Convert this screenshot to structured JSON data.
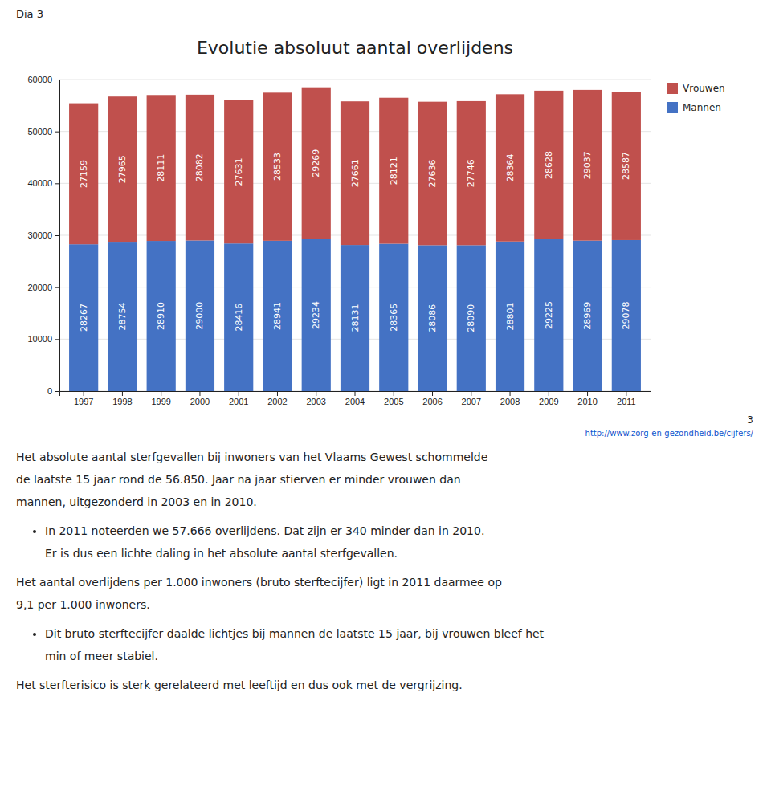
{
  "slide_label": "Dia 3",
  "chart_data": {
    "type": "bar",
    "title": "Evolutie absoluut aantal overlijdens",
    "categories": [
      1997,
      1998,
      1999,
      2000,
      2001,
      2002,
      2003,
      2004,
      2005,
      2006,
      2007,
      2008,
      2009,
      2010,
      2011
    ],
    "series": [
      {
        "name": "Mannen",
        "color": "#4472C4",
        "values": [
          28267,
          28754,
          28910,
          29000,
          28416,
          28941,
          29234,
          28131,
          28365,
          28086,
          28090,
          28801,
          29225,
          28969,
          29078
        ]
      },
      {
        "name": "Vrouwen",
        "color": "#C0504D",
        "values": [
          27159,
          27965,
          28111,
          28082,
          27631,
          28533,
          29269,
          27661,
          28121,
          27636,
          27746,
          28364,
          28628,
          29037,
          28587
        ]
      }
    ],
    "stacked": true,
    "data_labels": true,
    "ylim": [
      0,
      60000
    ],
    "yticks": [
      0,
      10000,
      20000,
      30000,
      40000,
      50000,
      60000
    ],
    "grid": true,
    "legend": "right"
  },
  "footer_number": "3",
  "footer_url": "http://www.zorg-en-gezondheid.be/cijfers/",
  "body": [
    {
      "lines": [
        "Het absolute aantal sterfgevallen bij inwoners van het Vlaams Gewest schommelde",
        "de laatste 15 jaar rond de 56.850. Jaar na jaar stierven er minder vrouwen dan",
        "mannen, uitgezonderd in 2003 en in 2010."
      ]
    },
    {
      "bullet": true,
      "lines": [
        "In 2011 noteerden we 57.666 overlijdens. Dat zijn er 340 minder dan in 2010.",
        "Er is dus een lichte daling in het absolute aantal sterfgevallen."
      ]
    },
    {
      "lines": [
        "Het aantal overlijdens per 1.000 inwoners (bruto sterftecijfer) ligt in 2011 daarmee op",
        "9,1 per 1.000 inwoners."
      ]
    },
    {
      "bullet": true,
      "lines": [
        "Dit bruto sterftecijfer daalde lichtjes bij mannen de laatste 15 jaar, bij vrouwen bleef het",
        "min of meer stabiel."
      ]
    },
    {
      "lines": [
        "Het sterfterisico is sterk gerelateerd met leeftijd en dus ook met de vergrijzing."
      ]
    }
  ]
}
